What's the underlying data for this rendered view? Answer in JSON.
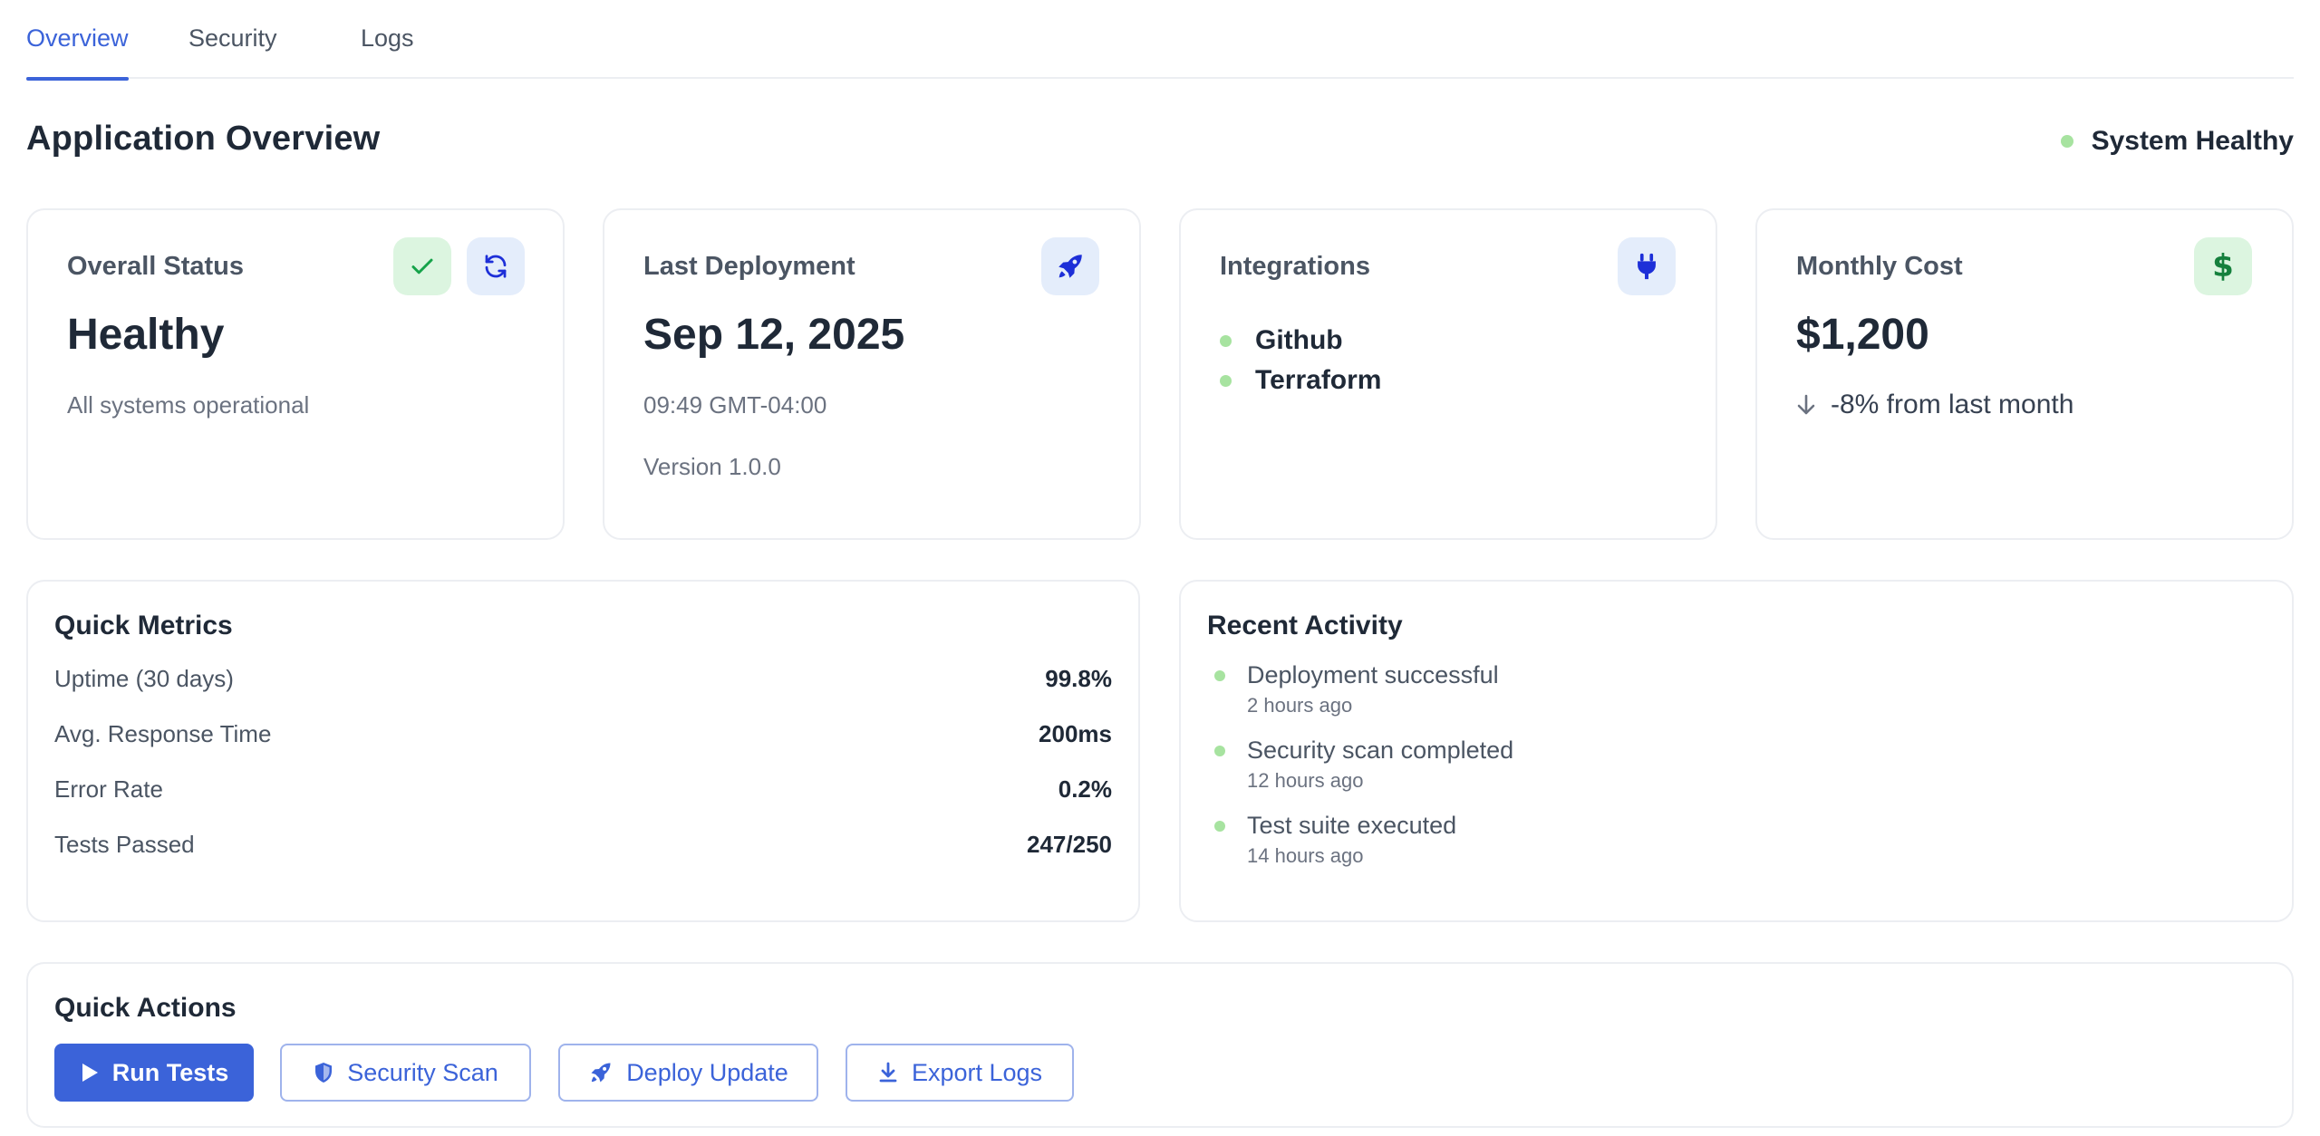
{
  "tabs": [
    {
      "label": "Overview",
      "active": true
    },
    {
      "label": "Security",
      "active": false
    },
    {
      "label": "Logs",
      "active": false
    }
  ],
  "header": {
    "title": "Application Overview",
    "health_label": "System Healthy"
  },
  "cards": {
    "status": {
      "title": "Overall Status",
      "value": "Healthy",
      "subtitle": "All systems operational",
      "icons": [
        "check-icon",
        "refresh-icon"
      ]
    },
    "deployment": {
      "title": "Last Deployment",
      "date": "Sep 12, 2025",
      "time": "09:49 GMT-04:00",
      "version": "Version 1.0.0",
      "icon": "rocket-icon"
    },
    "integrations": {
      "title": "Integrations",
      "items": [
        "Github",
        "Terraform"
      ],
      "icon": "plug-icon"
    },
    "cost": {
      "title": "Monthly Cost",
      "value": "$1,200",
      "change": "-8% from last month",
      "icon": "dollar-icon"
    }
  },
  "metrics": {
    "title": "Quick Metrics",
    "rows": [
      {
        "label": "Uptime (30 days)",
        "value": "99.8%"
      },
      {
        "label": "Avg. Response Time",
        "value": "200ms"
      },
      {
        "label": "Error Rate",
        "value": "0.2%"
      },
      {
        "label": "Tests Passed",
        "value": "247/250"
      }
    ]
  },
  "activity": {
    "title": "Recent Activity",
    "items": [
      {
        "title": "Deployment successful",
        "time": "2 hours ago"
      },
      {
        "title": "Security scan completed",
        "time": "12 hours ago"
      },
      {
        "title": "Test suite executed",
        "time": "14 hours ago"
      }
    ]
  },
  "actions": {
    "title": "Quick Actions",
    "buttons": [
      {
        "label": "Run Tests",
        "icon": "play-icon"
      },
      {
        "label": "Security Scan",
        "icon": "shield-icon"
      },
      {
        "label": "Deploy Update",
        "icon": "rocket-icon"
      },
      {
        "label": "Export Logs",
        "icon": "download-icon"
      }
    ]
  },
  "colors": {
    "accent": "#3b63d9",
    "healthy_dot": "#a7e3a0",
    "icon_green": "#16a34a",
    "icon_blue": "#1d2fd8"
  }
}
